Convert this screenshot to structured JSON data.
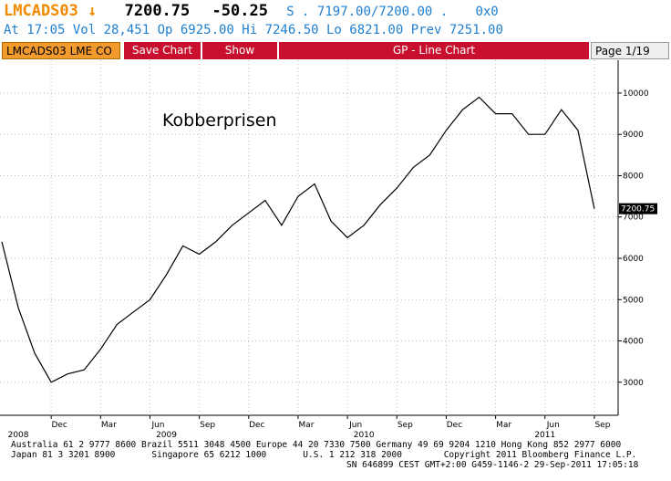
{
  "header": {
    "ticker": "LMCADS03 ↓",
    "last": "7200.75",
    "change": "-50.25",
    "bid_ask": "S . 7197.00/7200.00 .",
    "size": "0x0",
    "stats": "At 17:05 Vol 28,451 Op 6925.00  Hi 7246.50  Lo 6821.00  Prev 7251.00"
  },
  "toolbar": {
    "security": "LMCADS03 LME CO",
    "save": "Save Chart",
    "show": "Show",
    "function": "GP - Line Chart",
    "page": "Page 1/19"
  },
  "chart_data": {
    "type": "line",
    "title": "Kobberprisen",
    "x": [
      "2008-09",
      "2008-10",
      "2008-11",
      "2008-12",
      "2009-01",
      "2009-02",
      "2009-03",
      "2009-04",
      "2009-05",
      "2009-06",
      "2009-07",
      "2009-08",
      "2009-09",
      "2009-10",
      "2009-11",
      "2009-12",
      "2010-01",
      "2010-02",
      "2010-03",
      "2010-04",
      "2010-05",
      "2010-06",
      "2010-07",
      "2010-08",
      "2010-09",
      "2010-10",
      "2010-11",
      "2010-12",
      "2011-01",
      "2011-02",
      "2011-03",
      "2011-04",
      "2011-05",
      "2011-06",
      "2011-07",
      "2011-08",
      "2011-09"
    ],
    "series": [
      {
        "name": "LMCADS03 LME CO",
        "color": "#000000",
        "values": [
          6400,
          4800,
          3700,
          3000,
          3200,
          3300,
          3800,
          4400,
          4700,
          5000,
          5600,
          6300,
          6100,
          6400,
          6800,
          7100,
          7400,
          6800,
          7500,
          7800,
          6900,
          6500,
          6800,
          7300,
          7700,
          8200,
          8500,
          9100,
          9600,
          9900,
          9500,
          9500,
          9000,
          9000,
          9600,
          9100,
          7200.75
        ]
      }
    ],
    "xlim": [
      "2008-09",
      "2011-10"
    ],
    "xticks": [
      {
        "value": "2008-12",
        "label": "Dec"
      },
      {
        "value": "2009-03",
        "label": "Mar"
      },
      {
        "value": "2009-06",
        "label": "Jun"
      },
      {
        "value": "2009-09",
        "label": "Sep"
      },
      {
        "value": "2009-12",
        "label": "Dec"
      },
      {
        "value": "2010-03",
        "label": "Mar"
      },
      {
        "value": "2010-06",
        "label": "Jun"
      },
      {
        "value": "2010-09",
        "label": "Sep"
      },
      {
        "value": "2010-12",
        "label": "Dec"
      },
      {
        "value": "2011-03",
        "label": "Mar"
      },
      {
        "value": "2011-06",
        "label": "Jun"
      },
      {
        "value": "2011-09",
        "label": "Sep"
      }
    ],
    "year_ticks": [
      {
        "value": "2008-10",
        "label": "2008"
      },
      {
        "value": "2009-07",
        "label": "2009"
      },
      {
        "value": "2010-07",
        "label": "2010"
      },
      {
        "value": "2011-06",
        "label": "2011"
      }
    ],
    "ylim": [
      2200,
      10750
    ],
    "yticks": [
      3000,
      4000,
      5000,
      6000,
      7000,
      8000,
      9000,
      10000
    ],
    "grid": true
  },
  "footer": [
    "Australia 61 2 9777 8600 Brazil 5511 3048 4500 Europe 44 20 7330 7500 Germany 49 69 9204 1210 Hong Kong 852 2977 6000",
    "Japan 81 3 3201 8900       Singapore 65 6212 1000       U.S. 1 212 318 2000        Copyright 2011 Bloomberg Finance L.P.",
    "SN 646899 CEST GMT+2:00 G459-1146-2 29-Sep-2011 17:05:18"
  ]
}
